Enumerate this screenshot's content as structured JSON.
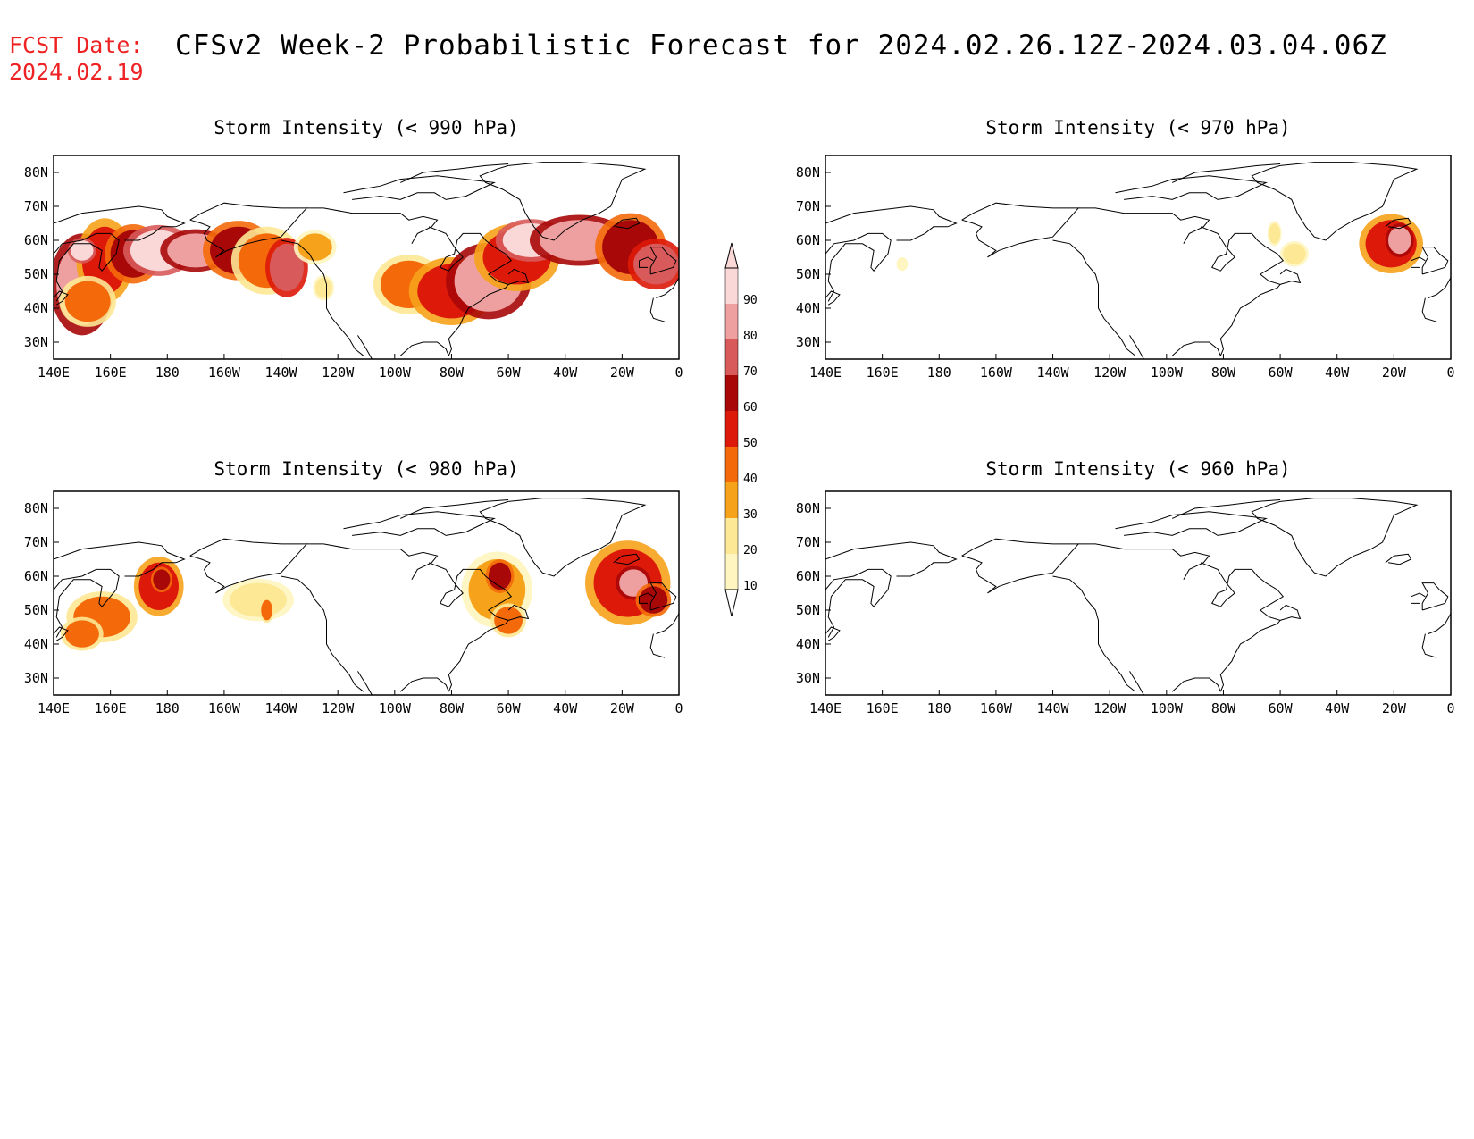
{
  "header": {
    "fcst_label": "FCST Date:",
    "fcst_date": "2024.02.19",
    "title": "CFSv2 Week-2 Probabilistic Forecast for 2024.02.26.12Z-2024.03.04.06Z"
  },
  "map_extent": {
    "lon_min": 140,
    "lon_max": 360,
    "lat_min": 25,
    "lat_max": 85
  },
  "lon_ticks": [
    "140E",
    "160E",
    "180",
    "160W",
    "140W",
    "120W",
    "100W",
    "80W",
    "60W",
    "40W",
    "20W",
    "0"
  ],
  "lat_ticks": [
    "80N",
    "70N",
    "60N",
    "50N",
    "40N",
    "30N"
  ],
  "colorbar": {
    "levels": [
      "10",
      "20",
      "30",
      "40",
      "50",
      "60",
      "70",
      "80",
      "90"
    ],
    "colors": [
      "#fff5c0",
      "#fde895",
      "#f6a21a",
      "#f46a0a",
      "#dd1a0a",
      "#a80808",
      "#d85a5a",
      "#eea0a0",
      "#fad8d8"
    ]
  },
  "panels": [
    {
      "id": "p990",
      "title": "Storm Intensity (< 990 hPa)",
      "blobs": [
        {
          "lon": 150,
          "lat": 47,
          "w": 9,
          "h": 12,
          "c": 7
        },
        {
          "lon": 158,
          "lat": 54,
          "w": 8,
          "h": 10,
          "c": 4
        },
        {
          "lon": 152,
          "lat": 42,
          "w": 8,
          "h": 6,
          "c": 3
        },
        {
          "lon": 168,
          "lat": 56,
          "w": 8,
          "h": 7,
          "c": 5
        },
        {
          "lon": 177,
          "lat": 57,
          "w": 10,
          "h": 6,
          "c": 8
        },
        {
          "lon": 190,
          "lat": 57,
          "w": 10,
          "h": 5,
          "c": 7
        },
        {
          "lon": 205,
          "lat": 57,
          "w": 10,
          "h": 7,
          "c": 5
        },
        {
          "lon": 215,
          "lat": 54,
          "w": 10,
          "h": 8,
          "c": 3
        },
        {
          "lon": 222,
          "lat": 52,
          "w": 6,
          "h": 7,
          "c": 6
        },
        {
          "lon": 232,
          "lat": 58,
          "w": 6,
          "h": 4,
          "c": 2
        },
        {
          "lon": 265,
          "lat": 47,
          "w": 10,
          "h": 7,
          "c": 3
        },
        {
          "lon": 280,
          "lat": 45,
          "w": 12,
          "h": 8,
          "c": 4
        },
        {
          "lon": 293,
          "lat": 48,
          "w": 12,
          "h": 9,
          "c": 7
        },
        {
          "lon": 303,
          "lat": 55,
          "w": 12,
          "h": 8,
          "c": 4
        },
        {
          "lon": 308,
          "lat": 60,
          "w": 10,
          "h": 5,
          "c": 8
        },
        {
          "lon": 325,
          "lat": 60,
          "w": 14,
          "h": 6,
          "c": 7
        },
        {
          "lon": 343,
          "lat": 58,
          "w": 10,
          "h": 8,
          "c": 5
        },
        {
          "lon": 352,
          "lat": 53,
          "w": 8,
          "h": 6,
          "c": 6
        },
        {
          "lon": 150,
          "lat": 57,
          "w": 4,
          "h": 3,
          "c": 8
        },
        {
          "lon": 235,
          "lat": 46,
          "w": 3,
          "h": 3,
          "c": 1
        }
      ]
    },
    {
      "id": "p970",
      "title": "Storm Intensity (< 970 hPa)",
      "blobs": [
        {
          "lon": 167,
          "lat": 53,
          "w": 2,
          "h": 2,
          "c": 0
        },
        {
          "lon": 298,
          "lat": 62,
          "w": 2,
          "h": 3,
          "c": 1
        },
        {
          "lon": 305,
          "lat": 56,
          "w": 4,
          "h": 3,
          "c": 1
        },
        {
          "lon": 339,
          "lat": 59,
          "w": 9,
          "h": 7,
          "c": 4
        },
        {
          "lon": 342,
          "lat": 60,
          "w": 4,
          "h": 4,
          "c": 7
        }
      ]
    },
    {
      "id": "p980",
      "title": "Storm Intensity (< 980 hPa)",
      "blobs": [
        {
          "lon": 157,
          "lat": 48,
          "w": 10,
          "h": 6,
          "c": 3
        },
        {
          "lon": 150,
          "lat": 43,
          "w": 6,
          "h": 4,
          "c": 3
        },
        {
          "lon": 177,
          "lat": 57,
          "w": 7,
          "h": 7,
          "c": 4
        },
        {
          "lon": 178,
          "lat": 59,
          "w": 3,
          "h": 3,
          "c": 5
        },
        {
          "lon": 212,
          "lat": 53,
          "w": 10,
          "h": 5,
          "c": 1
        },
        {
          "lon": 215,
          "lat": 50,
          "w": 2,
          "h": 3,
          "c": 3
        },
        {
          "lon": 296,
          "lat": 56,
          "w": 10,
          "h": 9,
          "c": 2
        },
        {
          "lon": 297,
          "lat": 60,
          "w": 4,
          "h": 4,
          "c": 5
        },
        {
          "lon": 300,
          "lat": 47,
          "w": 5,
          "h": 4,
          "c": 3
        },
        {
          "lon": 342,
          "lat": 58,
          "w": 12,
          "h": 10,
          "c": 4
        },
        {
          "lon": 344,
          "lat": 58,
          "w": 5,
          "h": 4,
          "c": 7
        },
        {
          "lon": 351,
          "lat": 53,
          "w": 5,
          "h": 4,
          "c": 5
        }
      ]
    },
    {
      "id": "p960",
      "title": "Storm Intensity (< 960 hPa)",
      "blobs": []
    }
  ]
}
